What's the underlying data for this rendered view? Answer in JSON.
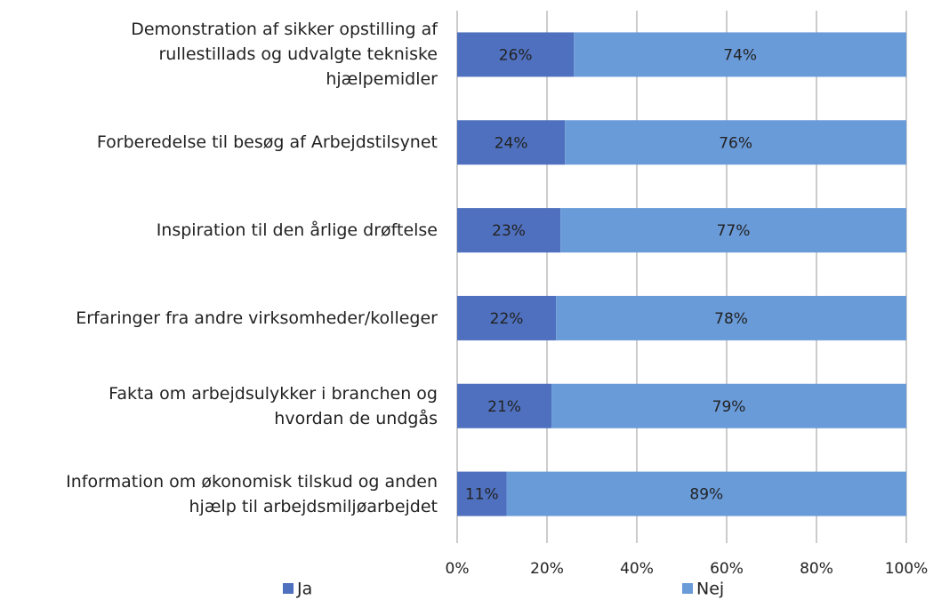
{
  "chart_data": {
    "type": "stacked_bar_horizontal",
    "categories": [
      "Demonstration af sikker opstilling af rullestillads og udvalgte tekniske hjælpemidler",
      "Forberedelse til besøg af Arbejdstilsynet",
      "Inspiration til den årlige drøftelse",
      "Erfaringer fra andre virksomheder/kolleger",
      "Fakta om arbejdsulykker i branchen og hvordan de undgås",
      "Information om økonomisk tilskud og anden hjælp til arbejdsmiljøarbejdet"
    ],
    "series": [
      {
        "name": "Ja",
        "color": "#4f70be",
        "values": [
          26,
          24,
          23,
          22,
          21,
          11
        ],
        "value_labels": [
          "26%",
          "24%",
          "23%",
          "22%",
          "21%",
          "11%"
        ]
      },
      {
        "name": "Nej",
        "color": "#6a9bd9",
        "values": [
          74,
          76,
          77,
          78,
          79,
          89
        ],
        "value_labels": [
          "74%",
          "76%",
          "77%",
          "78%",
          "79%",
          "89%"
        ]
      }
    ],
    "xlim": [
      0,
      100
    ],
    "xticks": [
      {
        "value": 0,
        "label": "0%"
      },
      {
        "value": 20,
        "label": "20%"
      },
      {
        "value": 40,
        "label": "40%"
      },
      {
        "value": 60,
        "label": "60%"
      },
      {
        "value": 80,
        "label": "80%"
      },
      {
        "value": 100,
        "label": "100%"
      }
    ],
    "grid": true,
    "legend": "bottom"
  }
}
